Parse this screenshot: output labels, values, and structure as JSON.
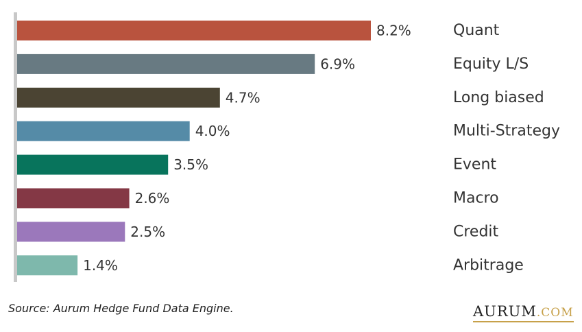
{
  "chart_data": {
    "type": "bar",
    "orientation": "horizontal",
    "categories": [
      "Quant",
      "Equity L/S",
      "Long biased",
      "Multi-Strategy",
      "Event",
      "Macro",
      "Credit",
      "Arbitrage"
    ],
    "values": [
      8.2,
      6.9,
      4.7,
      4.0,
      3.5,
      2.6,
      2.5,
      1.4
    ],
    "value_labels": [
      "8.2%",
      "6.9%",
      "4.7%",
      "4.0%",
      "3.5%",
      "2.6%",
      "2.5%",
      "1.4%"
    ],
    "colors": [
      "#b9533e",
      "#687a82",
      "#4b4433",
      "#558ba7",
      "#08745c",
      "#843845",
      "#9b78bb",
      "#7eb8ac"
    ],
    "xlim": [
      0,
      8.2
    ],
    "grid": false,
    "legend": "none"
  },
  "footer": {
    "source": "Source: Aurum Hedge Fund Data Engine.",
    "brand_name": "AURUM",
    "brand_ext": ".COM"
  },
  "colors": {
    "axis": "#c8c8c8",
    "text": "#333333",
    "brand_gold": "#c7a14a"
  }
}
